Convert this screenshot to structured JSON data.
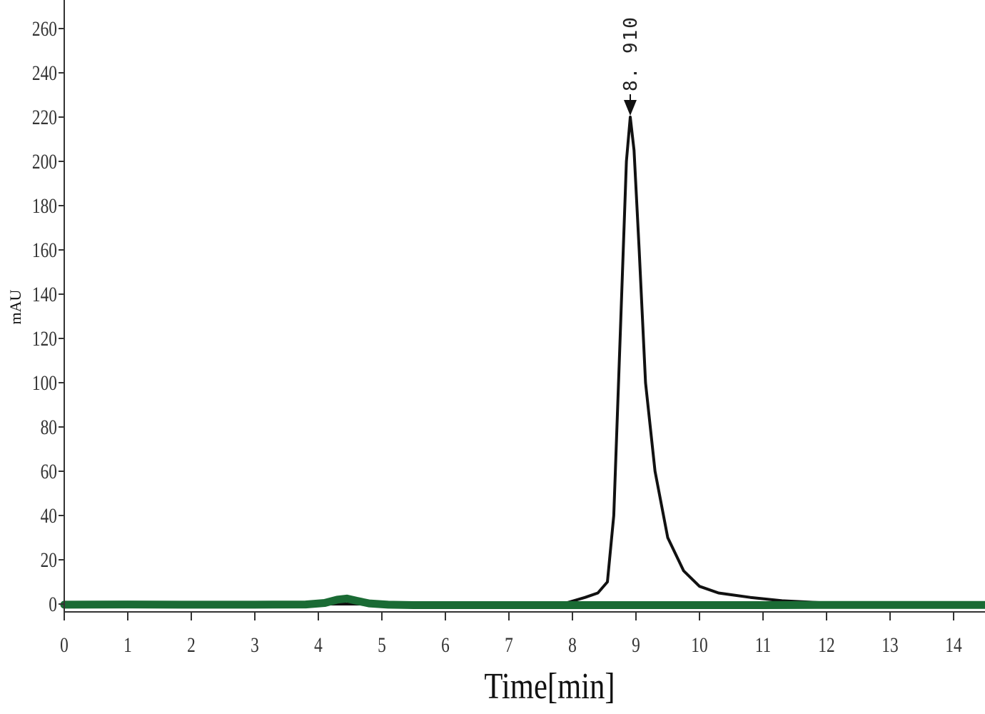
{
  "chart_data": {
    "type": "line",
    "title": "",
    "xlabel": "Time[min]",
    "ylabel": "mAU",
    "xlim": [
      0,
      14.5
    ],
    "ylim": [
      -5,
      270
    ],
    "x_ticks": [
      0,
      1,
      2,
      3,
      4,
      5,
      6,
      7,
      8,
      9,
      10,
      11,
      12,
      13,
      14
    ],
    "y_ticks": [
      0,
      20,
      40,
      60,
      80,
      100,
      120,
      140,
      160,
      180,
      200,
      220,
      240,
      260
    ],
    "grid": false,
    "legend": "none",
    "series": [
      {
        "color": "#111111",
        "x": [
          0,
          2,
          4,
          6,
          7.5,
          7.9,
          8.2,
          8.4,
          8.55,
          8.65,
          8.75,
          8.85,
          8.91,
          8.97,
          9.05,
          9.15,
          9.3,
          9.5,
          9.75,
          10.0,
          10.3,
          10.8,
          11.3,
          12.0,
          13.0,
          14.5
        ],
        "y": [
          0,
          0,
          0,
          0,
          0,
          0.5,
          3,
          5,
          10,
          40,
          120,
          200,
          220,
          205,
          160,
          100,
          60,
          30,
          15,
          8,
          5,
          3,
          1.5,
          0.5,
          0,
          0
        ]
      },
      {
        "color": "#1a6b34",
        "x": [
          0,
          1,
          2,
          3,
          3.8,
          4.1,
          4.3,
          4.45,
          4.6,
          4.8,
          5.1,
          5.5,
          6,
          7,
          8,
          9,
          10,
          11,
          12,
          13,
          14.5
        ],
        "y": [
          -0.3,
          -0.2,
          -0.3,
          -0.3,
          -0.2,
          0.5,
          2,
          2.5,
          1.5,
          0.3,
          -0.3,
          -0.5,
          -0.5,
          -0.5,
          -0.5,
          -0.5,
          -0.5,
          -0.5,
          -0.4,
          -0.4,
          -0.4
        ]
      }
    ],
    "annotations": [
      {
        "text": "8. 910",
        "x": 8.91,
        "y": 220
      }
    ]
  }
}
